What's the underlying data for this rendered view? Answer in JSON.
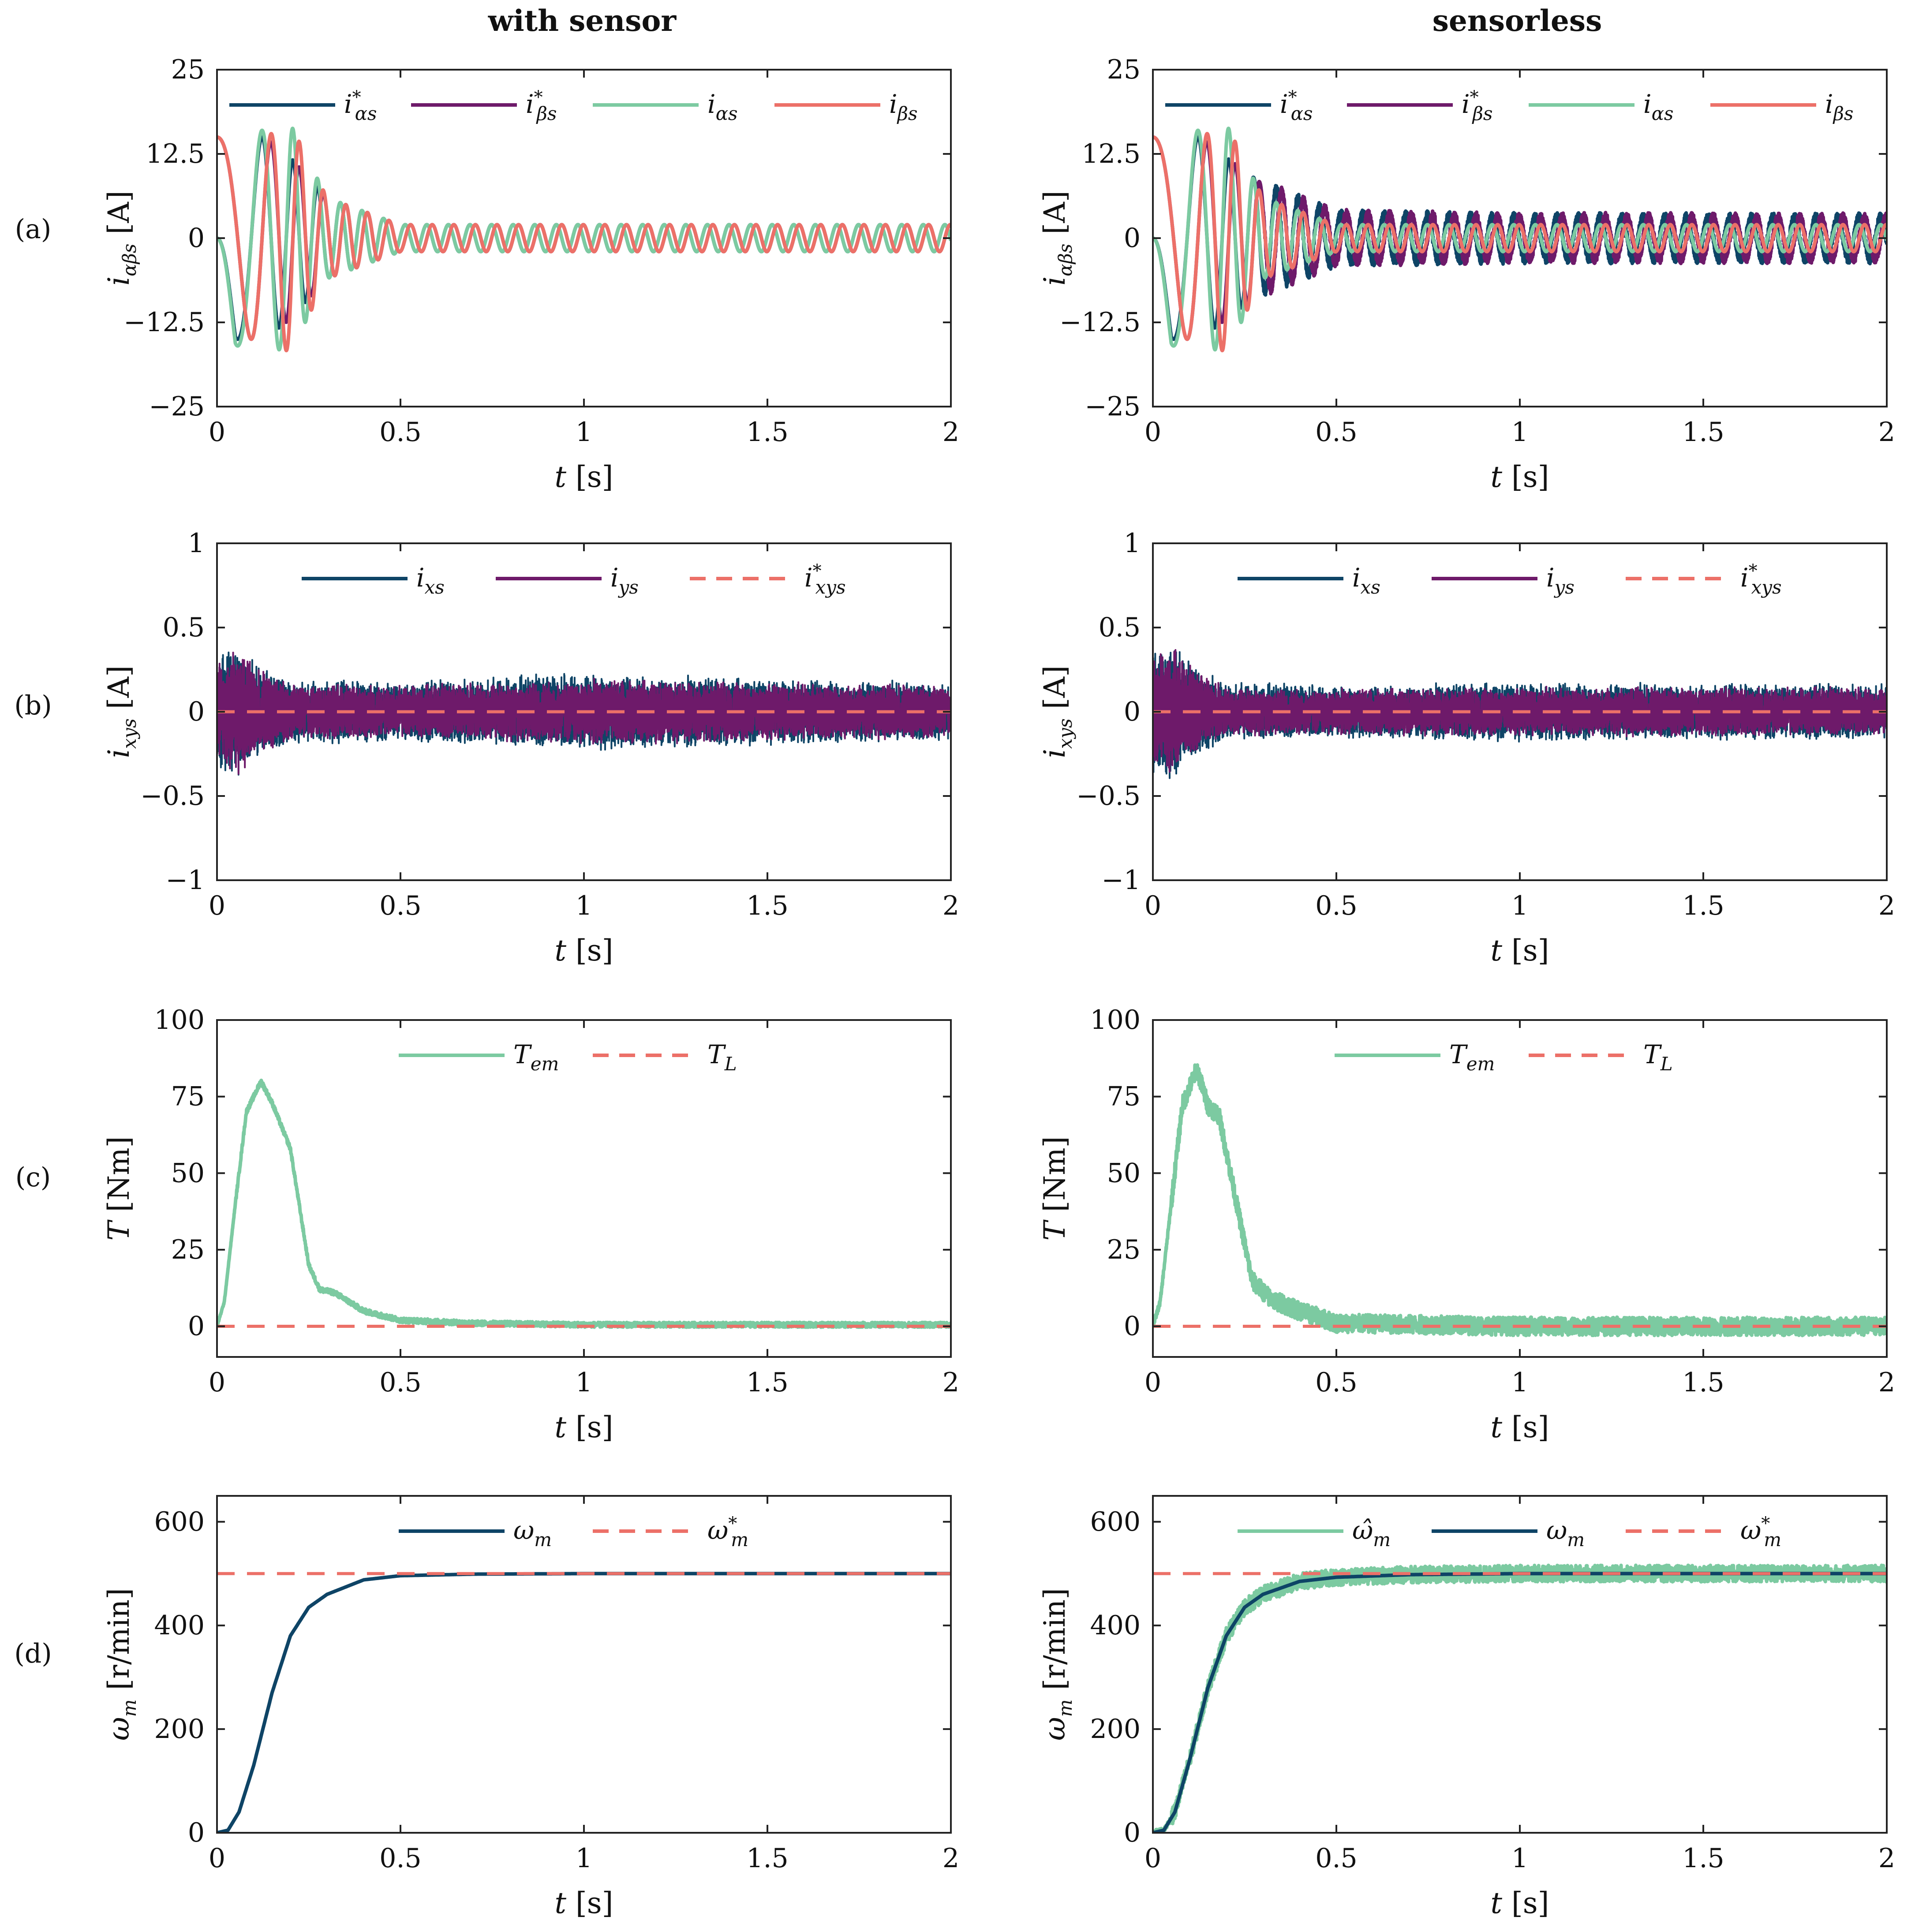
{
  "figure": {
    "columns": [
      "with sensor",
      "sensorless"
    ],
    "rows": [
      "(a)",
      "(b)",
      "(c)",
      "(d)"
    ]
  },
  "colors": {
    "dark_blue": "#0e4466",
    "purple": "#6e1a6a",
    "green": "#7ccaa1",
    "salmon": "#ec7068"
  },
  "chart_data": [
    {
      "id": "a-with-sensor",
      "type": "line",
      "row": "(a)",
      "column": "with sensor",
      "xlabel": "t [s]",
      "ylabel": "iαβs [A]",
      "xlim": [
        0,
        2
      ],
      "ylim": [
        -25,
        25
      ],
      "xticks": [
        "0",
        "0.5",
        "1",
        "1.5",
        "2"
      ],
      "yticks": [
        "−25",
        "−12.5",
        "0",
        "12.5",
        "25"
      ],
      "legend": [
        "i*αs",
        "i*βs",
        "iαs",
        "iβs"
      ],
      "legend_position": "top",
      "series": [
        {
          "name": "i*αs",
          "color": "#0e4466",
          "x": [
            0,
            0.05,
            0.1,
            0.13,
            0.2,
            0.3,
            0.5,
            1,
            2
          ],
          "amplitude": [
            0,
            15,
            15,
            15,
            12,
            6,
            2,
            2,
            2
          ]
        },
        {
          "name": "i*βs",
          "color": "#6e1a6a",
          "x": [
            0,
            0.05,
            0.1,
            0.13,
            0.2,
            0.3,
            0.5,
            1,
            2
          ],
          "amplitude": [
            15,
            15,
            15,
            15,
            12,
            6,
            2,
            2,
            2
          ]
        },
        {
          "name": "iαs",
          "color": "#7ccaa1",
          "x": [
            0,
            0.05,
            0.1,
            0.13,
            0.2,
            0.3,
            0.5,
            1,
            2
          ],
          "amplitude": [
            0,
            16,
            16,
            16,
            17,
            6,
            2,
            2,
            2
          ]
        },
        {
          "name": "iβs",
          "color": "#ec7068",
          "x": [
            0,
            0.05,
            0.1,
            0.13,
            0.2,
            0.3,
            0.5,
            1,
            2
          ],
          "amplitude": [
            15,
            15,
            15,
            15,
            17,
            6,
            2,
            2,
            2
          ]
        }
      ],
      "frequency_hz": [
        [
          0,
          3
        ],
        [
          0.1,
          8
        ],
        [
          0.2,
          14
        ],
        [
          0.35,
          17
        ],
        [
          2,
          17
        ]
      ]
    },
    {
      "id": "a-sensorless",
      "type": "line",
      "row": "(a)",
      "column": "sensorless",
      "xlabel": "t [s]",
      "ylabel": "iαβs [A]",
      "xlim": [
        0,
        2
      ],
      "ylim": [
        -25,
        25
      ],
      "xticks": [
        "0",
        "0.5",
        "1",
        "1.5",
        "2"
      ],
      "yticks": [
        "−25",
        "−12.5",
        "0",
        "12.5",
        "25"
      ],
      "legend": [
        "i*αs",
        "i*βs",
        "iαs",
        "iβs"
      ],
      "legend_position": "top",
      "series": [
        {
          "name": "i*αs",
          "color": "#0e4466",
          "x": [
            0,
            0.05,
            0.1,
            0.13,
            0.2,
            0.3,
            0.5,
            1,
            2
          ],
          "amplitude": [
            0,
            15,
            15,
            15,
            12,
            8,
            3.5,
            3,
            3
          ]
        },
        {
          "name": "i*βs",
          "color": "#6e1a6a",
          "x": [
            0,
            0.05,
            0.1,
            0.13,
            0.2,
            0.3,
            0.5,
            1,
            2
          ],
          "amplitude": [
            15,
            15,
            15,
            15,
            12,
            8,
            3.5,
            3,
            3
          ]
        },
        {
          "name": "iαs",
          "color": "#7ccaa1",
          "x": [
            0,
            0.05,
            0.1,
            0.13,
            0.2,
            0.3,
            0.5,
            1,
            2
          ],
          "amplitude": [
            0,
            16,
            16,
            16,
            17,
            6,
            2,
            2,
            2
          ]
        },
        {
          "name": "iβs",
          "color": "#ec7068",
          "x": [
            0,
            0.05,
            0.1,
            0.13,
            0.2,
            0.3,
            0.5,
            1,
            2
          ],
          "amplitude": [
            15,
            15,
            15,
            15,
            17,
            6,
            2,
            2,
            2
          ]
        }
      ],
      "frequency_hz": [
        [
          0,
          3
        ],
        [
          0.1,
          8
        ],
        [
          0.2,
          14
        ],
        [
          0.35,
          17
        ],
        [
          2,
          17
        ]
      ]
    },
    {
      "id": "b-with-sensor",
      "type": "line",
      "row": "(b)",
      "column": "with sensor",
      "xlabel": "t [s]",
      "ylabel": "ixys [A]",
      "xlim": [
        0,
        2
      ],
      "ylim": [
        -1,
        1
      ],
      "xticks": [
        "0",
        "0.5",
        "1",
        "1.5",
        "2"
      ],
      "yticks": [
        "−1",
        "−0.5",
        "0",
        "0.5",
        "1"
      ],
      "legend": [
        "ixs",
        "iys",
        "i*xys"
      ],
      "legend_position": "top",
      "series": [
        {
          "name": "ixs",
          "color": "#0e4466",
          "x": [
            0,
            0.05,
            0.1,
            0.2,
            0.5,
            1,
            1.5,
            2
          ],
          "amplitude": [
            0.35,
            0.42,
            0.3,
            0.2,
            0.18,
            0.24,
            0.2,
            0.18
          ]
        },
        {
          "name": "iys",
          "color": "#6e1a6a",
          "x": [
            0,
            0.05,
            0.1,
            0.2,
            0.5,
            1,
            1.5,
            2
          ],
          "amplitude": [
            0.3,
            0.4,
            0.28,
            0.17,
            0.16,
            0.2,
            0.18,
            0.16
          ]
        },
        {
          "name": "i*xys",
          "color": "#ec7068",
          "x": [
            0,
            2
          ],
          "y": [
            0,
            0
          ]
        }
      ]
    },
    {
      "id": "b-sensorless",
      "type": "line",
      "row": "(b)",
      "column": "sensorless",
      "xlabel": "t [s]",
      "ylabel": "ixys [A]",
      "xlim": [
        0,
        2
      ],
      "ylim": [
        -1,
        1
      ],
      "xticks": [
        "0",
        "0.5",
        "1",
        "1.5",
        "2"
      ],
      "yticks": [
        "−1",
        "−0.5",
        "0",
        "0.5",
        "1"
      ],
      "legend": [
        "ixs",
        "iys",
        "i*xys"
      ],
      "legend_position": "top",
      "series": [
        {
          "name": "ixs",
          "color": "#0e4466",
          "x": [
            0,
            0.05,
            0.1,
            0.2,
            0.5,
            1,
            1.5,
            2
          ],
          "amplitude": [
            0.4,
            0.42,
            0.3,
            0.18,
            0.16,
            0.18,
            0.17,
            0.17
          ]
        },
        {
          "name": "iys",
          "color": "#6e1a6a",
          "x": [
            0,
            0.05,
            0.1,
            0.2,
            0.5,
            1,
            1.5,
            2
          ],
          "amplitude": [
            0.35,
            0.4,
            0.28,
            0.15,
            0.14,
            0.15,
            0.15,
            0.15
          ]
        },
        {
          "name": "i*xys",
          "color": "#ec7068",
          "x": [
            0,
            2
          ],
          "y": [
            0,
            0
          ]
        }
      ]
    },
    {
      "id": "c-with-sensor",
      "type": "line",
      "row": "(c)",
      "column": "with sensor",
      "xlabel": "t [s]",
      "ylabel": "T [Nm]",
      "xlim": [
        0,
        2
      ],
      "ylim": [
        -10,
        100
      ],
      "xticks": [
        "0",
        "0.5",
        "1",
        "1.5",
        "2"
      ],
      "ytick_values": [
        0,
        25,
        50,
        75,
        100
      ],
      "yticks": [
        "0",
        "25",
        "50",
        "75",
        "100"
      ],
      "legend": [
        "Tem",
        "TL"
      ],
      "legend_position": "top",
      "series": [
        {
          "name": "Tem",
          "color": "#7ccaa1",
          "x": [
            0,
            0.02,
            0.05,
            0.08,
            0.12,
            0.15,
            0.2,
            0.25,
            0.28,
            0.32,
            0.4,
            0.5,
            0.7,
            1,
            2
          ],
          "y": [
            0,
            8,
            40,
            70,
            80,
            73,
            58,
            20,
            12,
            11,
            5,
            2,
            1,
            0.5,
            0.5
          ],
          "noise": 0.8
        },
        {
          "name": "TL",
          "color": "#ec7068",
          "x": [
            0,
            2
          ],
          "y": [
            0,
            0
          ]
        }
      ]
    },
    {
      "id": "c-sensorless",
      "type": "line",
      "row": "(c)",
      "column": "sensorless",
      "xlabel": "t [s]",
      "ylabel": "T [Nm]",
      "xlim": [
        0,
        2
      ],
      "ylim": [
        -10,
        100
      ],
      "xticks": [
        "0",
        "0.5",
        "1",
        "1.5",
        "2"
      ],
      "ytick_values": [
        0,
        25,
        50,
        75,
        100
      ],
      "yticks": [
        "0",
        "25",
        "50",
        "75",
        "100"
      ],
      "legend": [
        "Tem",
        "TL"
      ],
      "legend_position": "top",
      "series": [
        {
          "name": "Tem",
          "color": "#7ccaa1",
          "x": [
            0,
            0.02,
            0.05,
            0.08,
            0.12,
            0.15,
            0.18,
            0.22,
            0.27,
            0.32,
            0.4,
            0.5,
            1,
            2
          ],
          "y": [
            0,
            8,
            40,
            72,
            84,
            72,
            69,
            45,
            15,
            9,
            5,
            1,
            0,
            0
          ],
          "noise": 3
        },
        {
          "name": "TL",
          "color": "#ec7068",
          "x": [
            0,
            2
          ],
          "y": [
            0,
            0
          ]
        }
      ]
    },
    {
      "id": "d-with-sensor",
      "type": "line",
      "row": "(d)",
      "column": "with sensor",
      "xlabel": "t [s]",
      "ylabel": "ωm [r/min]",
      "xlim": [
        0,
        2
      ],
      "ylim": [
        0,
        650
      ],
      "xticks": [
        "0",
        "0.5",
        "1",
        "1.5",
        "2"
      ],
      "ytick_values": [
        0,
        200,
        400,
        600
      ],
      "yticks": [
        "0",
        "200",
        "400",
        "600"
      ],
      "legend": [
        "ωm",
        "ω*m"
      ],
      "legend_position": "top",
      "series": [
        {
          "name": "ωm",
          "color": "#0e4466",
          "x": [
            0,
            0.03,
            0.06,
            0.1,
            0.15,
            0.2,
            0.25,
            0.3,
            0.4,
            0.5,
            0.7,
            1,
            2
          ],
          "y": [
            0,
            5,
            40,
            130,
            270,
            380,
            435,
            460,
            488,
            496,
            499,
            500,
            500
          ]
        },
        {
          "name": "ω*m",
          "color": "#ec7068",
          "x": [
            0,
            2
          ],
          "y": [
            500,
            500
          ]
        }
      ]
    },
    {
      "id": "d-sensorless",
      "type": "line",
      "row": "(d)",
      "column": "sensorless",
      "xlabel": "t [s]",
      "ylabel": "ωm [r/min]",
      "xlim": [
        0,
        2
      ],
      "ylim": [
        0,
        650
      ],
      "xticks": [
        "0",
        "0.5",
        "1",
        "1.5",
        "2"
      ],
      "ytick_values": [
        0,
        200,
        400,
        600
      ],
      "yticks": [
        "0",
        "200",
        "400",
        "600"
      ],
      "legend": [
        "ω̂m",
        "ωm",
        "ω*m"
      ],
      "legend_position": "top",
      "series": [
        {
          "name": "ω̂m",
          "color": "#7ccaa1",
          "x": [
            0,
            0.03,
            0.06,
            0.1,
            0.15,
            0.2,
            0.25,
            0.3,
            0.4,
            0.5,
            0.7,
            1,
            2
          ],
          "y": [
            0,
            5,
            40,
            140,
            280,
            380,
            435,
            460,
            485,
            493,
            498,
            500,
            500
          ],
          "noise": 16
        },
        {
          "name": "ωm",
          "color": "#0e4466",
          "x": [
            0,
            0.03,
            0.06,
            0.1,
            0.15,
            0.2,
            0.25,
            0.3,
            0.4,
            0.5,
            0.7,
            1,
            2
          ],
          "y": [
            0,
            5,
            40,
            140,
            280,
            380,
            435,
            460,
            485,
            493,
            498,
            500,
            500
          ]
        },
        {
          "name": "ω*m",
          "color": "#ec7068",
          "x": [
            0,
            2
          ],
          "y": [
            500,
            500
          ]
        }
      ]
    }
  ]
}
